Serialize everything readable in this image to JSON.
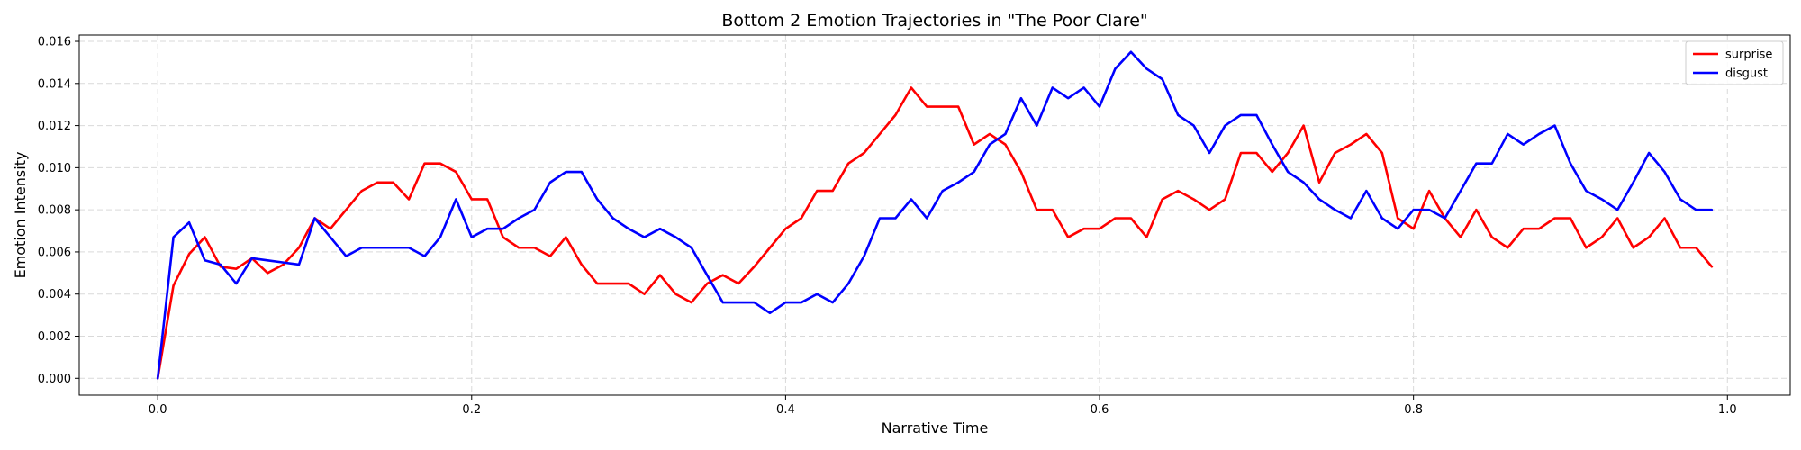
{
  "chart_data": {
    "type": "line",
    "title": "Bottom 2 Emotion Trajectories in \"The Poor Clare\"",
    "xlabel": "Narrative Time",
    "ylabel": "Emotion Intensity",
    "xlim": [
      -0.05,
      1.04
    ],
    "ylim": [
      -0.0008,
      0.0163
    ],
    "xticks": [
      0.0,
      0.2,
      0.4,
      0.6,
      0.8,
      1.0
    ],
    "xtick_labels": [
      "0.0",
      "0.2",
      "0.4",
      "0.6",
      "0.8",
      "1.0"
    ],
    "yticks": [
      0.0,
      0.002,
      0.004,
      0.006,
      0.008,
      0.01,
      0.012,
      0.014,
      0.016
    ],
    "ytick_labels": [
      "0.000",
      "0.002",
      "0.004",
      "0.006",
      "0.008",
      "0.010",
      "0.012",
      "0.014",
      "0.016"
    ],
    "grid": true,
    "legend_position": "top-right",
    "x": [
      0.0,
      0.01,
      0.02,
      0.03,
      0.04,
      0.05,
      0.06,
      0.07,
      0.08,
      0.09,
      0.1,
      0.11,
      0.12,
      0.13,
      0.14,
      0.15,
      0.16,
      0.17,
      0.18,
      0.19,
      0.2,
      0.21,
      0.22,
      0.23,
      0.24,
      0.25,
      0.26,
      0.27,
      0.28,
      0.29,
      0.3,
      0.31,
      0.32,
      0.33,
      0.34,
      0.35,
      0.36,
      0.37,
      0.38,
      0.39,
      0.4,
      0.41,
      0.42,
      0.43,
      0.44,
      0.45,
      0.46,
      0.47,
      0.48,
      0.49,
      0.5,
      0.51,
      0.52,
      0.53,
      0.54,
      0.55,
      0.56,
      0.57,
      0.58,
      0.59,
      0.6,
      0.61,
      0.62,
      0.63,
      0.64,
      0.65,
      0.66,
      0.67,
      0.68,
      0.69,
      0.7,
      0.71,
      0.72,
      0.73,
      0.74,
      0.75,
      0.76,
      0.77,
      0.78,
      0.79,
      0.8,
      0.81,
      0.82,
      0.83,
      0.84,
      0.85,
      0.86,
      0.87,
      0.88,
      0.89,
      0.9,
      0.91,
      0.92,
      0.93,
      0.94,
      0.95,
      0.96,
      0.97,
      0.98,
      0.99
    ],
    "series": [
      {
        "name": "surprise",
        "color": "#ff0000",
        "values": [
          0.0,
          0.0044,
          0.0059,
          0.0067,
          0.0053,
          0.0052,
          0.0057,
          0.005,
          0.0054,
          0.0062,
          0.0076,
          0.0071,
          0.008,
          0.0089,
          0.0093,
          0.0093,
          0.0085,
          0.0102,
          0.0102,
          0.0098,
          0.0085,
          0.0085,
          0.0067,
          0.0062,
          0.0062,
          0.0058,
          0.0067,
          0.0054,
          0.0045,
          0.0045,
          0.0045,
          0.004,
          0.0049,
          0.004,
          0.0036,
          0.0045,
          0.0049,
          0.0045,
          0.0053,
          0.0062,
          0.0071,
          0.0076,
          0.0089,
          0.0089,
          0.0102,
          0.0107,
          0.0116,
          0.0125,
          0.0138,
          0.0129,
          0.0129,
          0.0129,
          0.0111,
          0.0116,
          0.0111,
          0.0098,
          0.008,
          0.008,
          0.0067,
          0.0071,
          0.0071,
          0.0076,
          0.0076,
          0.0067,
          0.0085,
          0.0089,
          0.0085,
          0.008,
          0.0085,
          0.0107,
          0.0107,
          0.0098,
          0.0107,
          0.012,
          0.0093,
          0.0107,
          0.0111,
          0.0116,
          0.0107,
          0.0076,
          0.0071,
          0.0089,
          0.0076,
          0.0067,
          0.008,
          0.0067,
          0.0062,
          0.0071,
          0.0071,
          0.0076,
          0.0076,
          0.0062,
          0.0067,
          0.0076,
          0.0062,
          0.0067,
          0.0076,
          0.0062,
          0.0062,
          0.0053
        ]
      },
      {
        "name": "disgust",
        "color": "#0000ff",
        "values": [
          0.0,
          0.0067,
          0.0074,
          0.0056,
          0.0054,
          0.0045,
          0.0057,
          0.0056,
          0.0055,
          0.0054,
          0.0076,
          0.0067,
          0.0058,
          0.0062,
          0.0062,
          0.0062,
          0.0062,
          0.0058,
          0.0067,
          0.0085,
          0.0067,
          0.0071,
          0.0071,
          0.0076,
          0.008,
          0.0093,
          0.0098,
          0.0098,
          0.0085,
          0.0076,
          0.0071,
          0.0067,
          0.0071,
          0.0067,
          0.0062,
          0.0049,
          0.0036,
          0.0036,
          0.0036,
          0.0031,
          0.0036,
          0.0036,
          0.004,
          0.0036,
          0.0045,
          0.0058,
          0.0076,
          0.0076,
          0.0085,
          0.0076,
          0.0089,
          0.0093,
          0.0098,
          0.0111,
          0.0116,
          0.0133,
          0.012,
          0.0138,
          0.0133,
          0.0138,
          0.0129,
          0.0147,
          0.0155,
          0.0147,
          0.0142,
          0.0125,
          0.012,
          0.0107,
          0.012,
          0.0125,
          0.0125,
          0.0111,
          0.0098,
          0.0093,
          0.0085,
          0.008,
          0.0076,
          0.0089,
          0.0076,
          0.0071,
          0.008,
          0.008,
          0.0076,
          0.0089,
          0.0102,
          0.0102,
          0.0116,
          0.0111,
          0.0116,
          0.012,
          0.0102,
          0.0089,
          0.0085,
          0.008,
          0.0093,
          0.0107,
          0.0098,
          0.0085,
          0.008,
          0.008
        ]
      }
    ]
  }
}
